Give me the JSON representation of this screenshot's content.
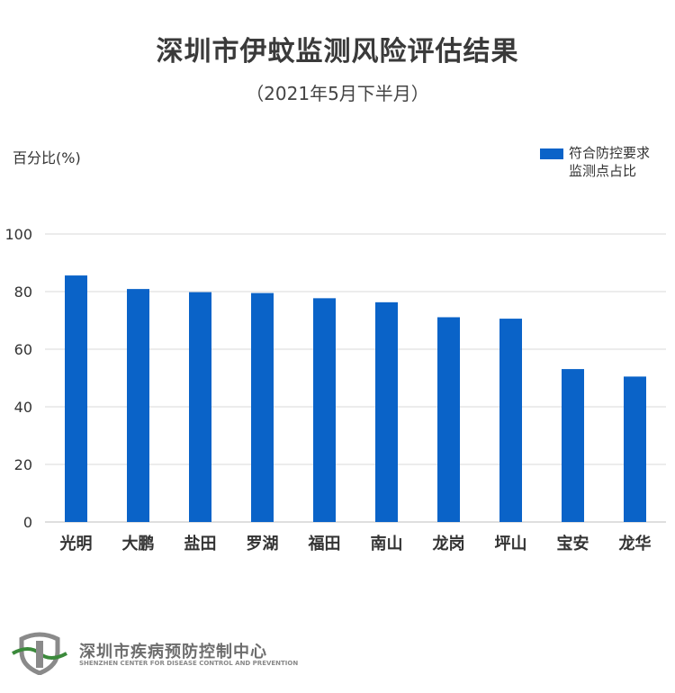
{
  "title": "深圳市伊蚊监测风险评估结果",
  "subtitle": "（2021年5月下半月）",
  "footer": {
    "org_name": "深圳市疾病预防控制中心",
    "org_name_en": "SHENZHEN CENTER FOR DISEASE CONTROL AND PREVENTION"
  },
  "colors": {
    "bar": "#0a63c8",
    "grid": "#d9d9d9",
    "logo_green": "#3b8a3b",
    "logo_gray": "#8a8a8a"
  },
  "chart_data": {
    "type": "bar",
    "title": "深圳市伊蚊监测风险评估结果",
    "subtitle": "（2021年5月下半月）",
    "ylabel": "百分比(%)",
    "xlabel": "",
    "ylim": [
      0,
      100
    ],
    "yticks": [
      0,
      20,
      40,
      60,
      80,
      100
    ],
    "grid": true,
    "legend_position": "top-right",
    "categories": [
      "光明",
      "大鹏",
      "盐田",
      "罗湖",
      "福田",
      "南山",
      "龙岗",
      "坪山",
      "宝安",
      "龙华"
    ],
    "series": [
      {
        "name": "符合防控要求监测点占比",
        "legend_lines": [
          "符合防控要求",
          "监测点占比"
        ],
        "values": [
          85.6,
          80.9,
          79.8,
          79.5,
          77.7,
          76.3,
          71.1,
          70.6,
          53.1,
          50.5
        ]
      }
    ]
  }
}
